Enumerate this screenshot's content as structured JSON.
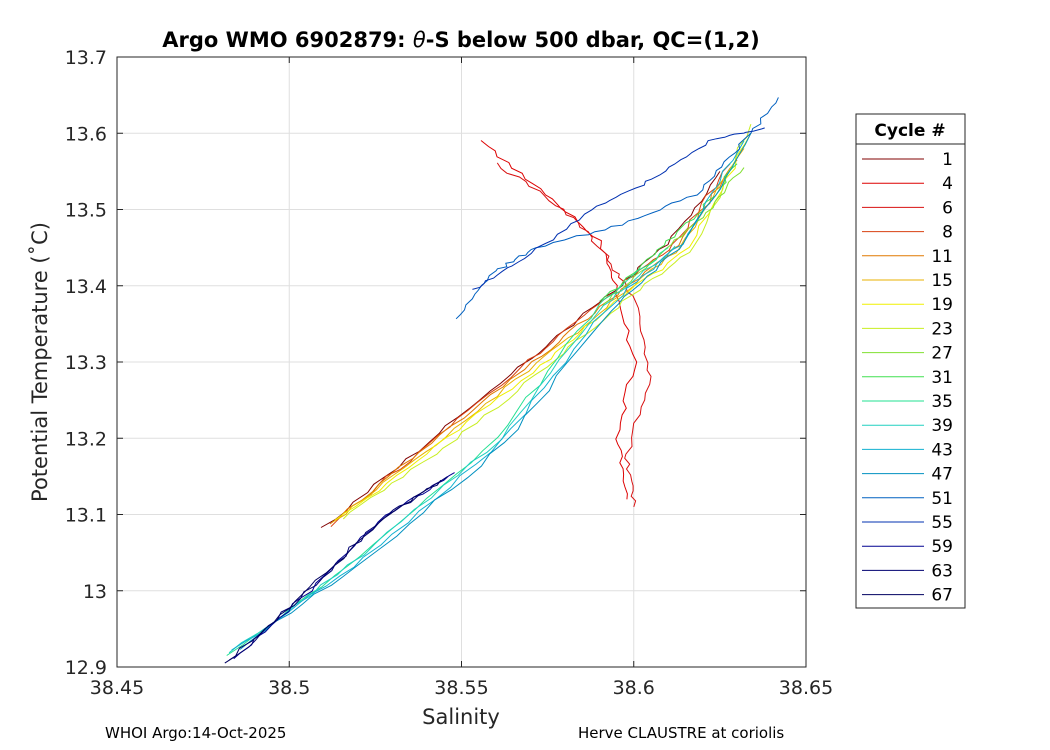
{
  "chart_data": {
    "type": "line",
    "title_parts": [
      "Argo WMO 6902879: ",
      "θ",
      "-S below 500 dbar,  QC=(1,2)"
    ],
    "xlabel": "Salinity",
    "ylabel": "Potential Temperature (˚C)",
    "xlim": [
      38.45,
      38.65
    ],
    "ylim": [
      12.9,
      13.7
    ],
    "x_ticks": [
      38.45,
      38.5,
      38.55,
      38.6,
      38.65
    ],
    "x_tick_labels": [
      "38.45",
      "38.5",
      "38.55",
      "38.6",
      "38.65"
    ],
    "y_ticks": [
      12.9,
      13.0,
      13.1,
      13.2,
      13.3,
      13.4,
      13.5,
      13.6,
      13.7
    ],
    "y_tick_labels": [
      "12.9",
      "13",
      "13.1",
      "13.2",
      "13.3",
      "13.4",
      "13.5",
      "13.6",
      "13.7"
    ],
    "grid": true,
    "legend": {
      "title": "Cycle #",
      "placement": "right-outside",
      "entries": [
        {
          "label": "1",
          "color": "#800000"
        },
        {
          "label": "4",
          "color": "#dd0000"
        },
        {
          "label": "6",
          "color": "#d81010"
        },
        {
          "label": "8",
          "color": "#d84010"
        },
        {
          "label": "11",
          "color": "#e07800"
        },
        {
          "label": "15",
          "color": "#e8b000"
        },
        {
          "label": "19",
          "color": "#f0f000"
        },
        {
          "label": "23",
          "color": "#c8ee20"
        },
        {
          "label": "27",
          "color": "#80e030"
        },
        {
          "label": "31",
          "color": "#40e050"
        },
        {
          "label": "35",
          "color": "#20e090"
        },
        {
          "label": "39",
          "color": "#20d0c0"
        },
        {
          "label": "43",
          "color": "#10b0d0"
        },
        {
          "label": "47",
          "color": "#0090c0"
        },
        {
          "label": "51",
          "color": "#0060c0"
        },
        {
          "label": "55",
          "color": "#0030b0"
        },
        {
          "label": "59",
          "color": "#000090"
        },
        {
          "label": "63",
          "color": "#000070"
        },
        {
          "label": "67",
          "color": "#000060"
        }
      ]
    },
    "series": [
      {
        "name": "1",
        "color": "#800000",
        "s": [
          38.51,
          38.54,
          38.57,
          38.59,
          38.61,
          38.625
        ],
        "t": [
          13.083,
          13.195,
          13.305,
          13.378,
          13.455,
          13.55
        ]
      },
      {
        "name": "4",
        "color": "#dd0000",
        "s": [
          38.555,
          38.575,
          38.59,
          38.595,
          38.6,
          38.595,
          38.598
        ],
        "t": [
          13.59,
          13.52,
          13.46,
          13.4,
          13.3,
          13.2,
          13.12
        ]
      },
      {
        "name": "6",
        "color": "#d81010",
        "s": [
          38.56,
          38.58,
          38.592,
          38.6,
          38.605,
          38.598,
          38.6
        ],
        "t": [
          13.56,
          13.5,
          13.44,
          13.38,
          13.28,
          13.18,
          13.11
        ]
      },
      {
        "name": "8",
        "color": "#d84010",
        "s": [
          38.512,
          38.54,
          38.57,
          38.592,
          38.612,
          38.628
        ],
        "t": [
          13.085,
          13.192,
          13.302,
          13.385,
          13.455,
          13.56
        ]
      },
      {
        "name": "11",
        "color": "#e07800",
        "s": [
          38.512,
          38.541,
          38.571,
          38.593,
          38.613,
          38.63
        ],
        "t": [
          13.088,
          13.193,
          13.3,
          13.382,
          13.452,
          13.565
        ]
      },
      {
        "name": "15",
        "color": "#e8b000",
        "s": [
          38.513,
          38.542,
          38.572,
          38.594,
          38.614,
          38.632
        ],
        "t": [
          13.09,
          13.192,
          13.298,
          13.38,
          13.45,
          13.58
        ]
      },
      {
        "name": "19",
        "color": "#f0f000",
        "s": [
          38.514,
          38.543,
          38.573,
          38.595,
          38.616,
          38.634
        ],
        "t": [
          13.092,
          13.19,
          13.296,
          13.38,
          13.45,
          13.6
        ]
      },
      {
        "name": "23",
        "color": "#c8ee20",
        "s": [
          38.515,
          38.545,
          38.575,
          38.597,
          38.618,
          38.634
        ],
        "t": [
          13.093,
          13.188,
          13.294,
          13.38,
          13.452,
          13.612
        ]
      },
      {
        "name": "27",
        "color": "#80e030",
        "s": [
          38.59,
          38.605,
          38.62,
          38.632
        ],
        "t": [
          13.37,
          13.43,
          13.49,
          13.555
        ]
      },
      {
        "name": "31",
        "color": "#40e050",
        "s": [
          38.59,
          38.606,
          38.62,
          38.63
        ],
        "t": [
          13.38,
          13.44,
          13.5,
          13.56
        ]
      },
      {
        "name": "35",
        "color": "#20e090",
        "s": [
          38.482,
          38.52,
          38.56,
          38.59,
          38.61
        ],
        "t": [
          12.915,
          13.045,
          13.2,
          13.375,
          13.45
        ]
      },
      {
        "name": "39",
        "color": "#20d0c0",
        "s": [
          38.483,
          38.521,
          38.561,
          38.591,
          38.612
        ],
        "t": [
          12.918,
          13.046,
          13.198,
          13.373,
          13.452
        ]
      },
      {
        "name": "43",
        "color": "#10b0d0",
        "s": [
          38.484,
          38.522,
          38.562,
          38.592,
          38.614,
          38.632
        ],
        "t": [
          12.921,
          13.044,
          13.196,
          13.37,
          13.455,
          13.59
        ]
      },
      {
        "name": "47",
        "color": "#0090c0",
        "s": [
          38.485,
          38.523,
          38.563,
          38.593,
          38.615,
          38.634
        ],
        "t": [
          12.924,
          13.042,
          13.194,
          13.368,
          13.456,
          13.6
        ]
      },
      {
        "name": "51",
        "color": "#0060c0",
        "s": [
          38.548,
          38.56,
          38.572,
          38.596,
          38.618,
          38.63,
          38.642
        ],
        "t": [
          13.357,
          13.42,
          13.45,
          13.48,
          13.52,
          13.58,
          13.647
        ]
      },
      {
        "name": "55",
        "color": "#0030b0",
        "s": [
          38.553,
          38.568,
          38.588,
          38.606,
          38.622,
          38.638
        ],
        "t": [
          13.395,
          13.435,
          13.5,
          13.54,
          13.59,
          13.607
        ]
      },
      {
        "name": "59",
        "color": "#000090",
        "s": [
          38.484,
          38.506,
          38.528,
          38.548
        ],
        "t": [
          12.91,
          13.0,
          13.1,
          13.155
        ]
      },
      {
        "name": "63",
        "color": "#000070",
        "s": [
          38.483,
          38.505,
          38.527,
          38.546
        ],
        "t": [
          12.908,
          12.998,
          13.095,
          13.15
        ]
      },
      {
        "name": "67",
        "color": "#000060",
        "s": [
          38.482,
          38.504,
          38.526,
          38.544
        ],
        "t": [
          12.906,
          12.995,
          13.09,
          13.145
        ]
      }
    ]
  },
  "footer": {
    "left": "WHOI Argo:14-Oct-2025",
    "right": "Herve CLAUSTRE at coriolis"
  }
}
